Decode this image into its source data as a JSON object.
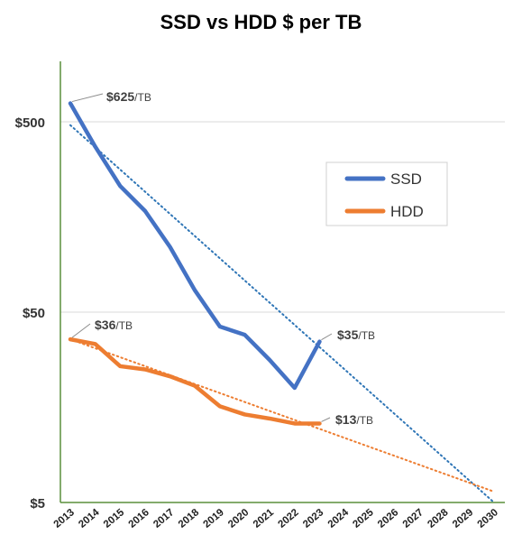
{
  "chart_data": {
    "type": "line",
    "title": "SSD vs HDD $ per TB",
    "xlabel": "",
    "ylabel": "",
    "y_scale": "log",
    "ylim": [
      5,
      1000
    ],
    "xlim": [
      2013,
      2030
    ],
    "y_ticks": [
      "$5",
      "$50",
      "$500"
    ],
    "y_tick_values": [
      5,
      50,
      500
    ],
    "x_ticks": [
      "2013",
      "2014",
      "2015",
      "2016",
      "2017",
      "2018",
      "2019",
      "2020",
      "2021",
      "2022",
      "2023",
      "2024",
      "2025",
      "2026",
      "2027",
      "2028",
      "2029",
      "2030"
    ],
    "grid": "horizontal",
    "legend_position": "right",
    "series": [
      {
        "name": "SSD",
        "color": "#4472C4",
        "x": [
          2013,
          2014,
          2015,
          2016,
          2017,
          2018,
          2019,
          2020,
          2021,
          2022,
          2023
        ],
        "values": [
          625,
          370,
          230,
          170,
          110,
          65,
          42,
          38,
          28,
          20,
          35
        ]
      },
      {
        "name": "HDD",
        "color": "#ED7D31",
        "x": [
          2013,
          2014,
          2015,
          2016,
          2017,
          2018,
          2019,
          2020,
          2021,
          2022,
          2023
        ],
        "values": [
          36,
          34,
          26,
          25,
          23,
          20.5,
          16,
          14.5,
          13.8,
          13,
          13
        ]
      }
    ],
    "trendlines": [
      {
        "series": "SSD",
        "style": "dotted",
        "color": "#2E75B6",
        "x": [
          2013,
          2030
        ],
        "values": [
          480,
          5
        ]
      },
      {
        "series": "HDD",
        "style": "dotted",
        "color": "#ED7D31",
        "x": [
          2013,
          2030
        ],
        "values": [
          36,
          5.7
        ]
      }
    ],
    "annotations": [
      {
        "id": "ssd-start",
        "value": "$625",
        "unit": "/TB",
        "x": 2013,
        "y": 625
      },
      {
        "id": "ssd-end",
        "value": "$35",
        "unit": "/TB",
        "x": 2023,
        "y": 35
      },
      {
        "id": "hdd-start",
        "value": "$36",
        "unit": "/TB",
        "x": 2013,
        "y": 36
      },
      {
        "id": "hdd-end",
        "value": "$13",
        "unit": "/TB",
        "x": 2023,
        "y": 13
      }
    ]
  }
}
